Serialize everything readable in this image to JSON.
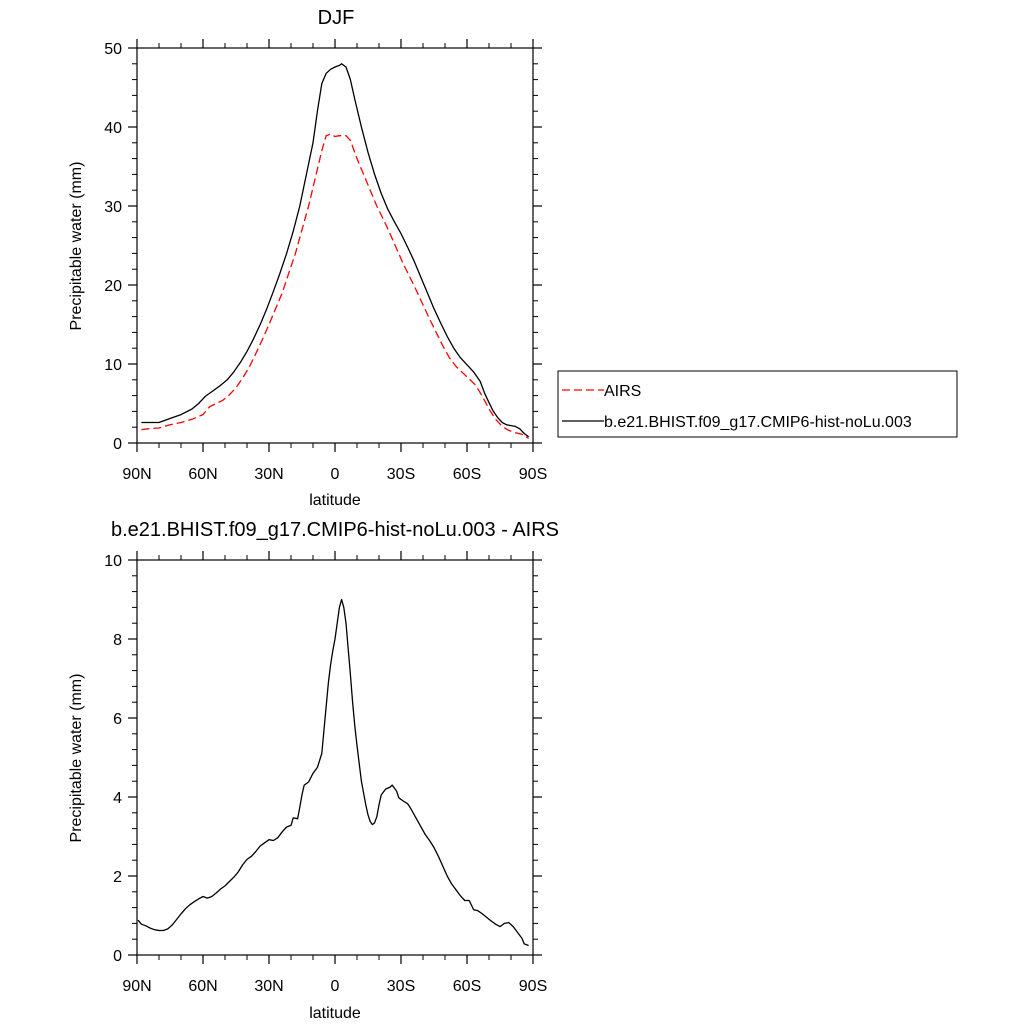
{
  "chart_data": [
    {
      "type": "line",
      "title": "DJF",
      "xlabel": "latitude",
      "ylabel": "Precipitable water (mm)",
      "xlim": [
        -90,
        90
      ],
      "ylim": [
        0,
        50
      ],
      "x_ticks": [
        -90,
        -60,
        -30,
        0,
        30,
        60,
        90
      ],
      "x_tick_labels": [
        "90N",
        "60N",
        "30N",
        "0",
        "30S",
        "60S",
        "90S"
      ],
      "y_ticks": [
        0,
        10,
        20,
        30,
        40,
        50
      ],
      "y_tick_labels": [
        "0",
        "10",
        "20",
        "30",
        "40",
        "50"
      ],
      "grid": false,
      "legend_position": "right",
      "series": [
        {
          "name": "AIRS",
          "style": "dashed",
          "color": "#ff0000",
          "points": [
            [
              -88,
              1.7
            ],
            [
              -85,
              1.8
            ],
            [
              -80,
              1.9
            ],
            [
              -75,
              2.3
            ],
            [
              -70,
              2.6
            ],
            [
              -65,
              3.0
            ],
            [
              -60,
              3.6
            ],
            [
              -57,
              4.6
            ],
            [
              -54,
              5.0
            ],
            [
              -51,
              5.4
            ],
            [
              -48,
              6.1
            ],
            [
              -45,
              7.0
            ],
            [
              -42,
              8.2
            ],
            [
              -39,
              9.6
            ],
            [
              -36,
              11.3
            ],
            [
              -33,
              13.1
            ],
            [
              -30,
              15.0
            ],
            [
              -27,
              17.0
            ],
            [
              -24,
              19.0
            ],
            [
              -21,
              21.5
            ],
            [
              -18,
              24.0
            ],
            [
              -15,
              27.0
            ],
            [
              -12,
              30.0
            ],
            [
              -9,
              33.5
            ],
            [
              -6,
              37.0
            ],
            [
              -4,
              38.9
            ],
            [
              -2,
              39.1
            ],
            [
              0,
              38.8
            ],
            [
              2,
              38.9
            ],
            [
              5,
              38.9
            ],
            [
              7,
              38.3
            ],
            [
              10,
              36.0
            ],
            [
              13,
              34.0
            ],
            [
              16,
              32.0
            ],
            [
              19,
              30.0
            ],
            [
              22,
              28.3
            ],
            [
              25,
              26.5
            ],
            [
              28,
              24.6
            ],
            [
              31,
              22.7
            ],
            [
              34,
              21.0
            ],
            [
              37,
              19.3
            ],
            [
              40,
              17.5
            ],
            [
              43,
              15.7
            ],
            [
              46,
              14.0
            ],
            [
              49,
              12.3
            ],
            [
              52,
              10.8
            ],
            [
              55,
              9.7
            ],
            [
              58,
              8.9
            ],
            [
              61,
              8.1
            ],
            [
              64,
              7.3
            ],
            [
              67,
              5.9
            ],
            [
              70,
              4.3
            ],
            [
              73,
              3.0
            ],
            [
              76,
              2.1
            ],
            [
              79,
              1.6
            ],
            [
              82,
              1.3
            ],
            [
              85,
              1.1
            ],
            [
              88,
              0.6
            ]
          ]
        },
        {
          "name": "b.e21.BHIST.f09_g17.CMIP6-hist-noLu.003",
          "style": "solid",
          "color": "#000000",
          "points": [
            [
              -88,
              2.6
            ],
            [
              -85,
              2.6
            ],
            [
              -80,
              2.6
            ],
            [
              -75,
              3.1
            ],
            [
              -70,
              3.6
            ],
            [
              -65,
              4.3
            ],
            [
              -62,
              5.0
            ],
            [
              -59,
              5.9
            ],
            [
              -55,
              6.7
            ],
            [
              -52,
              7.3
            ],
            [
              -49,
              8.0
            ],
            [
              -46,
              9.0
            ],
            [
              -43,
              10.2
            ],
            [
              -40,
              11.6
            ],
            [
              -37,
              13.2
            ],
            [
              -34,
              15.0
            ],
            [
              -31,
              17.0
            ],
            [
              -28,
              19.2
            ],
            [
              -25,
              21.5
            ],
            [
              -22,
              24.0
            ],
            [
              -19,
              26.8
            ],
            [
              -16,
              30.0
            ],
            [
              -13,
              34.0
            ],
            [
              -10,
              38.0
            ],
            [
              -8,
              42.0
            ],
            [
              -6,
              45.5
            ],
            [
              -4,
              46.8
            ],
            [
              -2,
              47.3
            ],
            [
              0,
              47.6
            ],
            [
              2,
              47.8
            ],
            [
              3,
              48.0
            ],
            [
              5,
              47.6
            ],
            [
              7,
              46.0
            ],
            [
              9,
              43.5
            ],
            [
              12,
              40.0
            ],
            [
              15,
              36.8
            ],
            [
              18,
              34.0
            ],
            [
              21,
              31.6
            ],
            [
              24,
              29.6
            ],
            [
              27,
              28.0
            ],
            [
              30,
              26.5
            ],
            [
              33,
              24.8
            ],
            [
              36,
              23.0
            ],
            [
              39,
              21.0
            ],
            [
              42,
              19.0
            ],
            [
              45,
              17.0
            ],
            [
              48,
              15.2
            ],
            [
              51,
              13.5
            ],
            [
              54,
              12.0
            ],
            [
              57,
              10.8
            ],
            [
              60,
              9.9
            ],
            [
              63,
              9.0
            ],
            [
              66,
              7.8
            ],
            [
              68,
              6.3
            ],
            [
              70,
              5.1
            ],
            [
              72,
              4.0
            ],
            [
              74,
              3.2
            ],
            [
              76,
              2.6
            ],
            [
              78,
              2.3
            ],
            [
              80,
              2.2
            ],
            [
              82,
              2.1
            ],
            [
              84,
              1.8
            ],
            [
              86,
              1.2
            ],
            [
              88,
              0.8
            ]
          ]
        }
      ]
    },
    {
      "type": "line",
      "title": "b.e21.BHIST.f09_g17.CMIP6-hist-noLu.003 - AIRS",
      "xlabel": "latitude",
      "ylabel": "Precipitable water (mm)",
      "xlim": [
        -90,
        90
      ],
      "ylim": [
        0,
        10
      ],
      "x_ticks": [
        -90,
        -60,
        -30,
        0,
        30,
        60,
        90
      ],
      "x_tick_labels": [
        "90N",
        "60N",
        "30N",
        "0",
        "30S",
        "60S",
        "90S"
      ],
      "y_ticks": [
        0,
        2,
        4,
        6,
        8,
        10
      ],
      "y_tick_labels": [
        "0",
        "2",
        "4",
        "6",
        "8",
        "10"
      ],
      "grid": false,
      "series": [
        {
          "style": "solid",
          "color": "#000000",
          "points": [
            [
              -89.5,
              0.88
            ],
            [
              -88,
              0.78
            ],
            [
              -86,
              0.74
            ],
            [
              -84,
              0.68
            ],
            [
              -82,
              0.64
            ],
            [
              -80,
              0.62
            ],
            [
              -78,
              0.62
            ],
            [
              -76,
              0.66
            ],
            [
              -74,
              0.76
            ],
            [
              -72,
              0.9
            ],
            [
              -70,
              1.04
            ],
            [
              -68,
              1.17
            ],
            [
              -66,
              1.27
            ],
            [
              -64,
              1.35
            ],
            [
              -62,
              1.42
            ],
            [
              -60,
              1.48
            ],
            [
              -58,
              1.44
            ],
            [
              -56,
              1.48
            ],
            [
              -54,
              1.57
            ],
            [
              -52,
              1.67
            ],
            [
              -50,
              1.75
            ],
            [
              -48,
              1.86
            ],
            [
              -46,
              1.97
            ],
            [
              -44,
              2.1
            ],
            [
              -42,
              2.28
            ],
            [
              -40,
              2.42
            ],
            [
              -38,
              2.5
            ],
            [
              -36,
              2.62
            ],
            [
              -34,
              2.76
            ],
            [
              -32,
              2.84
            ],
            [
              -30,
              2.92
            ],
            [
              -28,
              2.9
            ],
            [
              -26,
              2.97
            ],
            [
              -24,
              3.12
            ],
            [
              -22,
              3.24
            ],
            [
              -20,
              3.28
            ],
            [
              -19,
              3.47
            ],
            [
              -17,
              3.45
            ],
            [
              -16,
              3.74
            ],
            [
              -15,
              4.06
            ],
            [
              -14,
              4.3
            ],
            [
              -12,
              4.38
            ],
            [
              -10,
              4.6
            ],
            [
              -8,
              4.75
            ],
            [
              -6,
              5.1
            ],
            [
              -5,
              5.7
            ],
            [
              -4,
              6.3
            ],
            [
              -3,
              6.9
            ],
            [
              -2,
              7.35
            ],
            [
              -1,
              7.7
            ],
            [
              0,
              8.0
            ],
            [
              1,
              8.4
            ],
            [
              2,
              8.8
            ],
            [
              3,
              9.0
            ],
            [
              4,
              8.8
            ],
            [
              5,
              8.4
            ],
            [
              6,
              7.75
            ],
            [
              7,
              7.1
            ],
            [
              8,
              6.4
            ],
            [
              9,
              5.8
            ],
            [
              10,
              5.3
            ],
            [
              11,
              4.85
            ],
            [
              12,
              4.4
            ],
            [
              13,
              4.1
            ],
            [
              14,
              3.8
            ],
            [
              15,
              3.55
            ],
            [
              16,
              3.38
            ],
            [
              17,
              3.3
            ],
            [
              18,
              3.35
            ],
            [
              19,
              3.5
            ],
            [
              20,
              3.8
            ],
            [
              21,
              4.05
            ],
            [
              23,
              4.2
            ],
            [
              25,
              4.25
            ],
            [
              26,
              4.3
            ],
            [
              28,
              4.15
            ],
            [
              29,
              3.98
            ],
            [
              31,
              3.9
            ],
            [
              33,
              3.83
            ],
            [
              34,
              3.75
            ],
            [
              35,
              3.65
            ],
            [
              37,
              3.45
            ],
            [
              39,
              3.25
            ],
            [
              41,
              3.05
            ],
            [
              43,
              2.9
            ],
            [
              45,
              2.72
            ],
            [
              47,
              2.5
            ],
            [
              49,
              2.25
            ],
            [
              51,
              2.0
            ],
            [
              53,
              1.8
            ],
            [
              55,
              1.65
            ],
            [
              57,
              1.5
            ],
            [
              59,
              1.38
            ],
            [
              61,
              1.38
            ],
            [
              63,
              1.15
            ],
            [
              65,
              1.12
            ],
            [
              67,
              1.04
            ],
            [
              69,
              0.95
            ],
            [
              71,
              0.86
            ],
            [
              73,
              0.78
            ],
            [
              75,
              0.72
            ],
            [
              77,
              0.8
            ],
            [
              79,
              0.82
            ],
            [
              81,
              0.72
            ],
            [
              83,
              0.57
            ],
            [
              85,
              0.42
            ],
            [
              86,
              0.28
            ],
            [
              88,
              0.24
            ]
          ]
        }
      ]
    }
  ]
}
